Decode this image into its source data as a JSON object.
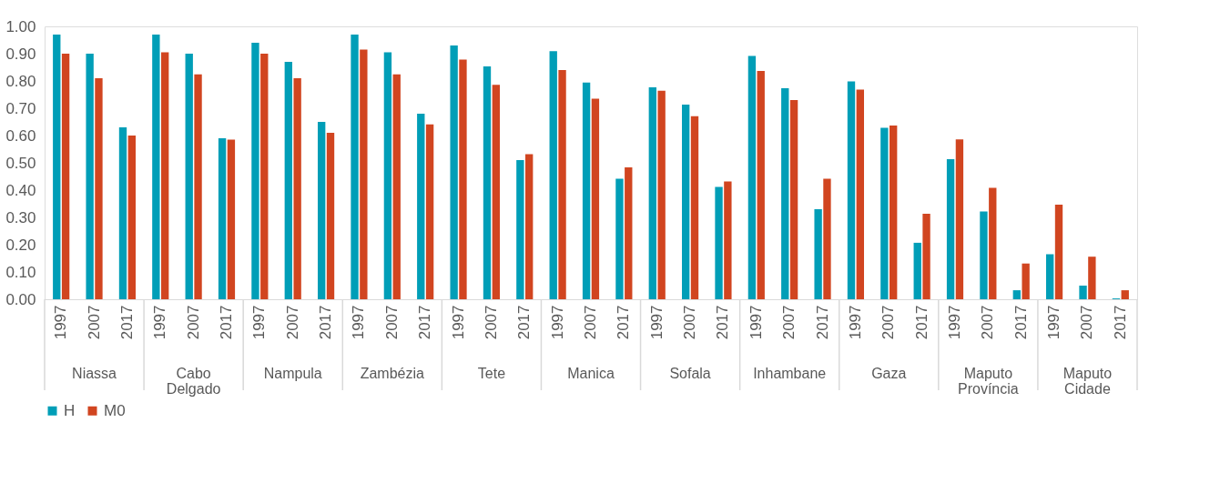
{
  "chart_data": {
    "type": "bar",
    "categories": [
      "1997",
      "2007",
      "2017",
      "1997",
      "2007",
      "2017",
      "1997",
      "2007",
      "2017",
      "1997",
      "2007",
      "2017",
      "1997",
      "2007",
      "2017",
      "1997",
      "2007",
      "2017",
      "1997",
      "2007",
      "2017",
      "1997",
      "2007",
      "2017",
      "1997",
      "2007",
      "2017",
      "1997",
      "2007",
      "2017",
      "1997",
      "2007",
      "2017"
    ],
    "series": [
      {
        "name": "H",
        "color": "#009eb7",
        "values": [
          0.97,
          0.9,
          0.63,
          0.97,
          0.9,
          0.59,
          0.94,
          0.87,
          0.65,
          0.97,
          0.905,
          0.68,
          0.93,
          0.853,
          0.51,
          0.909,
          0.794,
          0.442,
          0.777,
          0.713,
          0.412,
          0.892,
          0.773,
          0.33,
          0.798,
          0.628,
          0.207,
          0.513,
          0.322,
          0.033,
          0.165,
          0.05,
          0.003
        ]
      },
      {
        "name": "M0",
        "color": "#d14520",
        "values": [
          0.9,
          0.81,
          0.6,
          0.905,
          0.824,
          0.585,
          0.9,
          0.81,
          0.61,
          0.915,
          0.824,
          0.641,
          0.878,
          0.786,
          0.532,
          0.84,
          0.735,
          0.483,
          0.764,
          0.671,
          0.432,
          0.837,
          0.73,
          0.442,
          0.768,
          0.637,
          0.313,
          0.586,
          0.408,
          0.131,
          0.347,
          0.156,
          0.033
        ]
      }
    ],
    "ylim": [
      0,
      1
    ],
    "yticks": [
      {
        "value": 0,
        "label": "0.00"
      },
      {
        "value": 0.1,
        "label": "0.10"
      },
      {
        "value": 0.2,
        "label": "0.20"
      },
      {
        "value": 0.3,
        "label": "0.30"
      },
      {
        "value": 0.4,
        "label": "0.40"
      },
      {
        "value": 0.5,
        "label": "0.50"
      },
      {
        "value": 0.6,
        "label": "0.60"
      },
      {
        "value": 0.7,
        "label": "0.70"
      },
      {
        "value": 0.8,
        "label": "0.80"
      },
      {
        "value": 0.9,
        "label": "0.90"
      },
      {
        "value": 1,
        "label": "1.00"
      }
    ],
    "annotations": [
      "Niassa",
      "Cabo Delgado",
      "Nampula",
      "Zambézia",
      "Tete",
      "Manica",
      "Sofala",
      "Inhambane",
      "Gaza",
      "Maputo Província",
      "Maputo Cidade"
    ],
    "grid": false,
    "legend": "bottom"
  }
}
